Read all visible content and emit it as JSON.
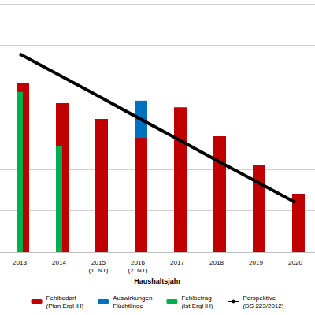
{
  "chart_data": {
    "type": "bar",
    "x_label": "Haushaltsjahr",
    "categories": [
      "2013",
      "2014",
      "2015\n(1. NT)",
      "2016\n(2. NT)",
      "2017",
      "2018",
      "2019",
      "2020"
    ],
    "series": [
      {
        "name": "Fehlbedarf\n(Plan ErgHH)",
        "type": "bar",
        "color": "#c00000",
        "values": [
          4.08,
          3.6,
          3.22,
          2.76,
          3.5,
          2.8,
          2.11,
          1.41
        ]
      },
      {
        "name": "Auswirkungen\nFlüchtlinge",
        "type": "bar",
        "color": "#0070c0",
        "values": [
          null,
          null,
          null,
          0.9,
          null,
          null,
          null,
          null
        ]
      },
      {
        "name": "Fehlbetrag\n(Ist ErgHH)",
        "type": "overlay",
        "color": "#00b050",
        "values": [
          3.87,
          2.57,
          null,
          null,
          null,
          null,
          null,
          null
        ]
      },
      {
        "name": "Perspektive\n(DS 223/2012)",
        "type": "line",
        "color": "#000000",
        "marker": "none",
        "line_style": "solid",
        "values": [
          4.79,
          4.28,
          3.77,
          3.25,
          2.74,
          2.22,
          1.71,
          1.2
        ]
      }
    ],
    "ylim": [
      0,
      6
    ],
    "yticks": [
      0,
      1,
      2,
      3,
      4,
      5,
      6
    ],
    "stacked": true,
    "grid": true,
    "legend": "bottom",
    "tick_labels": "x"
  }
}
